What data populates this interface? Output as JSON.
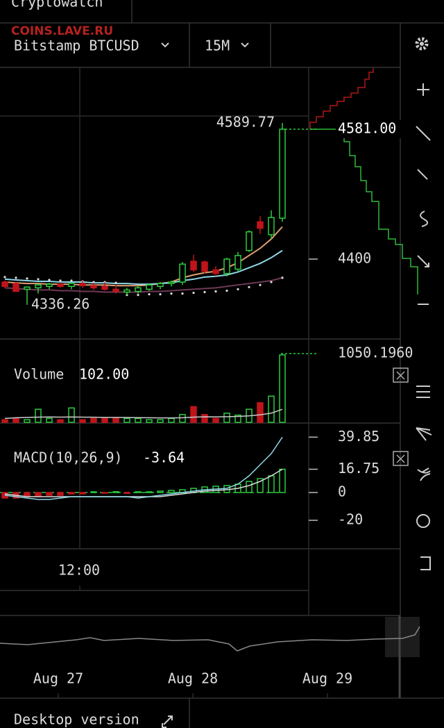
{
  "app": {
    "title": "Cryptowatch",
    "watermark": "COINS.LAVE.RU",
    "market": "Bitstamp BTCUSD",
    "interval": "15M",
    "footer": "Desktop version"
  },
  "price_chart": {
    "high_label": 4589.77,
    "low_label": 4336.26,
    "last": {
      "value": 4581,
      "label": "4581.00"
    },
    "yticks": [
      4400
    ],
    "up_color": "#2ecc40",
    "down_color": "#c0141a",
    "candles": [
      {
        "o": 4368,
        "h": 4370,
        "l": 4360,
        "c": 4362
      },
      {
        "o": 4366,
        "h": 4368,
        "l": 4355,
        "c": 4355
      },
      {
        "o": 4358,
        "h": 4362,
        "l": 4336.26,
        "c": 4361
      },
      {
        "o": 4360,
        "h": 4366,
        "l": 4352,
        "c": 4364
      },
      {
        "o": 4362,
        "h": 4367,
        "l": 4358,
        "c": 4365
      },
      {
        "o": 4365,
        "h": 4368,
        "l": 4360,
        "c": 4362
      },
      {
        "o": 4362,
        "h": 4368,
        "l": 4358,
        "c": 4366
      },
      {
        "o": 4366,
        "h": 4370,
        "l": 4360,
        "c": 4363
      },
      {
        "o": 4363,
        "h": 4367,
        "l": 4357,
        "c": 4360
      },
      {
        "o": 4362,
        "h": 4368,
        "l": 4356,
        "c": 4358
      },
      {
        "o": 4358,
        "h": 4364,
        "l": 4352,
        "c": 4355
      },
      {
        "o": 4354,
        "h": 4360,
        "l": 4350,
        "c": 4357
      },
      {
        "o": 4355,
        "h": 4362,
        "l": 4352,
        "c": 4360
      },
      {
        "o": 4358,
        "h": 4366,
        "l": 4356,
        "c": 4364
      },
      {
        "o": 4362,
        "h": 4368,
        "l": 4358,
        "c": 4366
      },
      {
        "o": 4366,
        "h": 4370,
        "l": 4362,
        "c": 4368
      },
      {
        "o": 4368,
        "h": 4396,
        "l": 4364,
        "c": 4393
      },
      {
        "o": 4397,
        "h": 4406,
        "l": 4382,
        "c": 4385
      },
      {
        "o": 4396,
        "h": 4398,
        "l": 4380,
        "c": 4383
      },
      {
        "o": 4385,
        "h": 4390,
        "l": 4376,
        "c": 4380
      },
      {
        "o": 4380,
        "h": 4402,
        "l": 4376,
        "c": 4400
      },
      {
        "o": 4386,
        "h": 4410,
        "l": 4382,
        "c": 4405
      },
      {
        "o": 4412,
        "h": 4440,
        "l": 4410,
        "c": 4438
      },
      {
        "o": 4452,
        "h": 4460,
        "l": 4435,
        "c": 4443
      },
      {
        "o": 4434,
        "h": 4468,
        "l": 4428,
        "c": 4458
      },
      {
        "o": 4457,
        "h": 4589.77,
        "l": 4452,
        "c": 4581
      }
    ],
    "lines": [
      {
        "color": "#6e3a55",
        "values": [
          4360,
          4359,
          4358,
          4357,
          4357,
          4356,
          4356,
          4355,
          4355,
          4354,
          4354,
          4354,
          4354,
          4355,
          4355,
          4356,
          4357,
          4358,
          4359,
          4360,
          4362,
          4364,
          4366,
          4368,
          4370,
          4374
        ]
      },
      {
        "color": "#e0a070",
        "values": [
          4368,
          4367,
          4366,
          4366,
          4365,
          4365,
          4365,
          4364,
          4364,
          4364,
          4363,
          4363,
          4363,
          4364,
          4366,
          4368,
          4374,
          4378,
          4381,
          4383,
          4388,
          4395,
          4405,
          4415,
          4428,
          4445
        ]
      },
      {
        "color": "#8fd8e8",
        "values": [
          4372,
          4371,
          4370,
          4369,
          4369,
          4368,
          4368,
          4368,
          4367,
          4367,
          4366,
          4366,
          4365,
          4365,
          4366,
          4367,
          4370,
          4372,
          4375,
          4376,
          4378,
          4382,
          4388,
          4394,
          4402,
          4412
        ]
      }
    ],
    "sar": [
      4375,
      4374,
      4373,
      4372,
      4371,
      4370,
      4370,
      4369,
      4368,
      4368,
      4367,
      4350,
      4350,
      4351,
      4351,
      4352,
      4352,
      4353,
      4354,
      4355,
      4356,
      4358,
      4361,
      4364,
      4368,
      4374
    ]
  },
  "volume": {
    "label": "Volume",
    "current": {
      "value": 102,
      "label": "102.00"
    },
    "ymax": {
      "value": 1050.196,
      "label": "1050.1960"
    },
    "values": [
      40,
      60,
      40,
      200,
      60,
      40,
      220,
      40,
      60,
      60,
      60,
      60,
      60,
      40,
      40,
      60,
      120,
      240,
      120,
      60,
      140,
      110,
      200,
      300,
      400,
      1030
    ],
    "average": [
      60,
      70,
      75,
      80,
      82,
      80,
      82,
      80,
      78,
      76,
      75,
      74,
      72,
      70,
      68,
      68,
      70,
      80,
      85,
      84,
      86,
      90,
      100,
      115,
      140,
      200
    ]
  },
  "macd": {
    "label": "MACD(10,26,9)",
    "current": -3.64,
    "yticks": [
      39.85,
      16.75,
      0,
      -20
    ],
    "histogram": [
      -4,
      -4,
      -3,
      -3,
      -2,
      -2,
      -1,
      -1,
      0.5,
      -0.5,
      0.6,
      -0.6,
      0.5,
      0.5,
      1,
      1.5,
      2,
      3,
      4,
      4.5,
      5,
      6,
      8,
      10,
      12,
      16.75
    ],
    "macd_line": [
      -2,
      -3,
      -4,
      -5,
      -5,
      -4,
      -3,
      -3,
      -3,
      -3,
      -3,
      -3,
      -4,
      -3,
      -2,
      -1,
      0,
      1,
      2,
      2.5,
      3,
      6,
      12,
      20,
      28,
      39.85
    ],
    "signal_line": [
      -1,
      -2,
      -3,
      -3,
      -3,
      -3,
      -3,
      -3,
      -3,
      -3,
      -3,
      -3,
      -3,
      -3,
      -3,
      -2,
      -1,
      0,
      1,
      1.5,
      2,
      3,
      5,
      8,
      12,
      16.75
    ]
  },
  "time_axis": {
    "ticks": [
      "12:00"
    ]
  },
  "navigator": {
    "ticks": [
      "Aug 27",
      "Aug 28",
      "Aug 29"
    ]
  }
}
